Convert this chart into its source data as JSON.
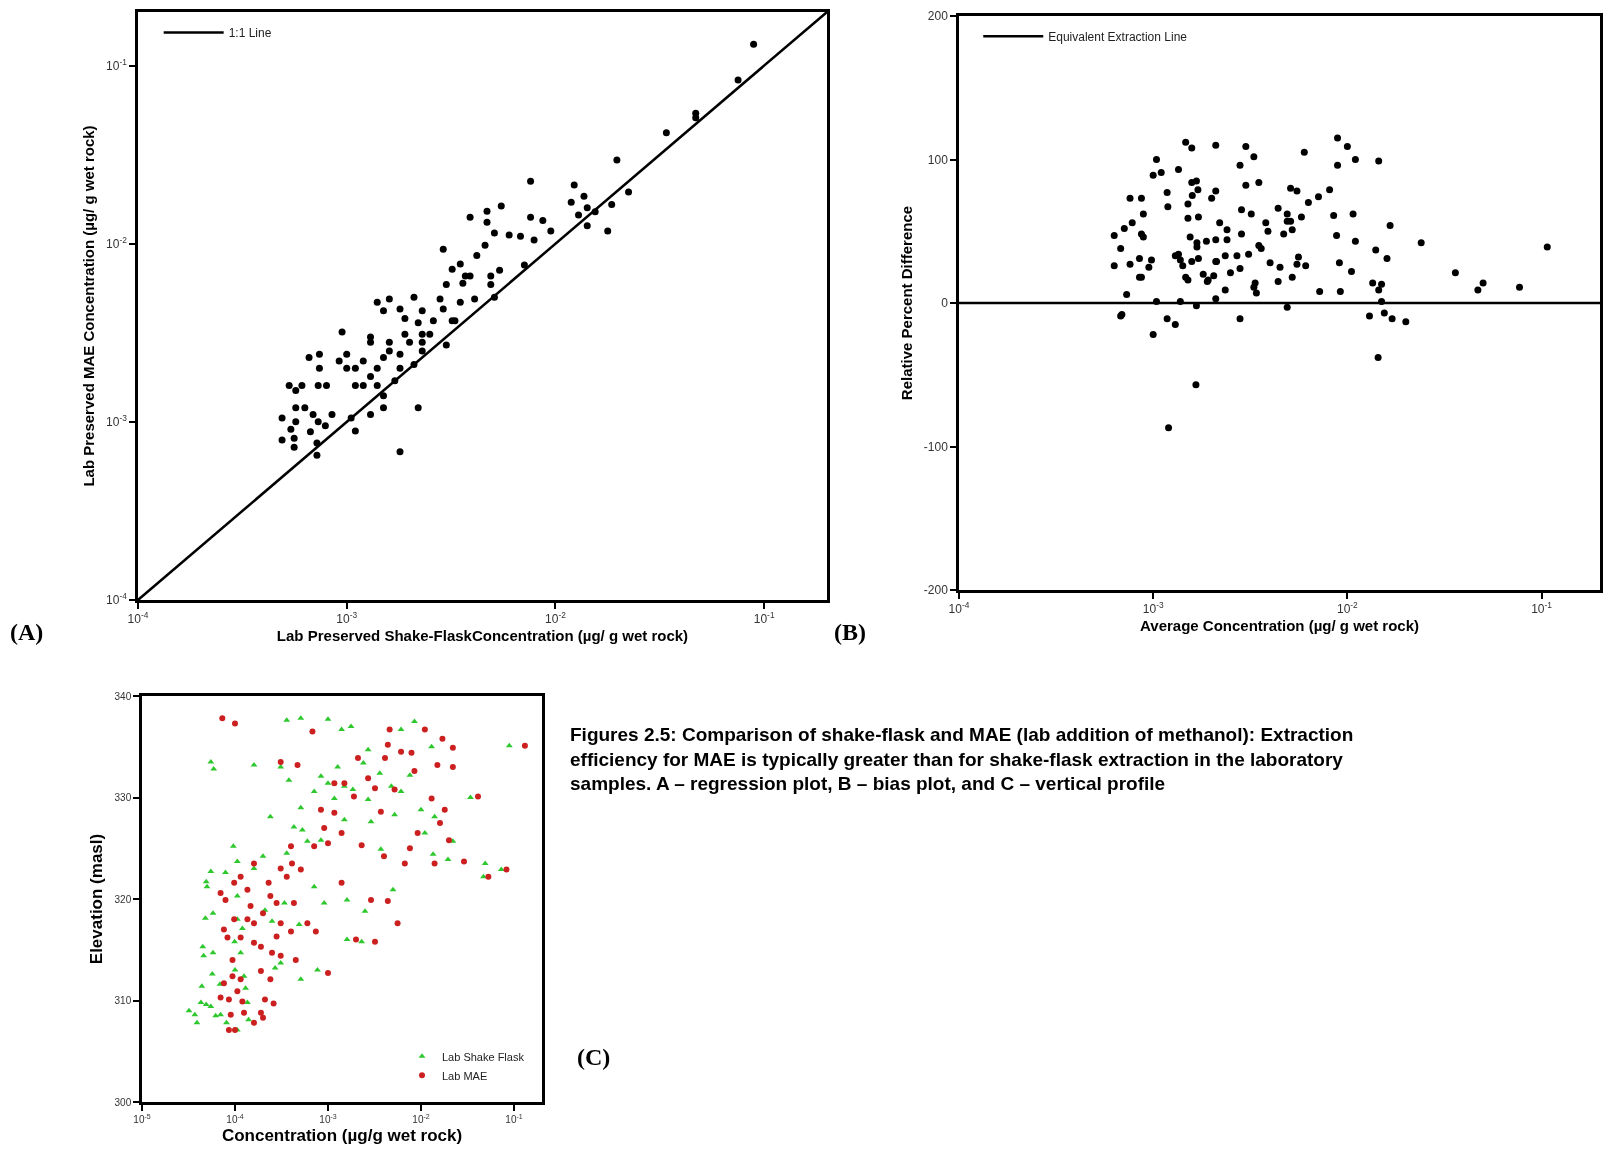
{
  "chart_data": [
    {
      "type": "scatter",
      "xlabel": "Lab Preserved Shake-FlaskConcentration (µg/ g wet rock)",
      "ylabel": "Lab Preserved MAE Concentration (µg/ g wet rock)",
      "annotations": [
        "(A)"
      ],
      "log": "xy",
      "legend": "top left",
      "xlim": [
        0.0001,
        0.2
      ],
      "ylim": [
        0.0001,
        0.2
      ],
      "xticks": [
        {
          "value": 0.0001,
          "label": "10$^{-4}$"
        },
        {
          "value": 0.001,
          "label": "10$^{-3}$"
        },
        {
          "value": 0.01,
          "label": "10$^{-2}$"
        },
        {
          "value": 0.1,
          "label": "10$^{-1}$"
        }
      ],
      "yticks": [
        {
          "value": 0.0001,
          "label": "10$^{-4}$"
        },
        {
          "value": 0.001,
          "label": "10$^{-3}$"
        },
        {
          "value": 0.01,
          "label": "10$^{-2}$"
        },
        {
          "value": 0.1,
          "label": "10$^{-1}$"
        }
      ],
      "series": [
        {
          "type": "line",
          "name": "1:1 Line",
          "color": "#000000",
          "marker": "none",
          "x": [
            0.0001,
            0.2
          ],
          "values": [
            0.0001,
            0.2
          ]
        },
        {
          "color": "#000000",
          "marker": "circle",
          "x": [
            0.089,
            0.075,
            0.047,
            0.047,
            0.034,
            0.0197,
            0.0224,
            0.0186,
            0.0178,
            0.0123,
            0.0119,
            0.0137,
            0.0142,
            0.0142,
            0.0155,
            0.0129,
            0.0076,
            0.0076,
            0.0087,
            0.0095,
            0.0055,
            0.0047,
            0.0047,
            0.006,
            0.0068,
            0.0079,
            0.0051,
            0.0039,
            0.0046,
            0.0042,
            0.0071,
            0.0029,
            0.0032,
            0.0035,
            0.0037,
            0.0039,
            0.0054,
            0.0049,
            0.0049,
            0.0036,
            0.003,
            0.0035,
            0.0041,
            0.0051,
            0.0028,
            0.0029,
            0.0026,
            0.0032,
            0.0033,
            0.003,
            0.0021,
            0.0023,
            0.0022,
            0.0023,
            0.0025,
            0.0016,
            0.0018,
            0.0015,
            0.0014,
            0.0019,
            0.0019,
            0.002,
            0.0023,
            0.0023,
            0.0021,
            0.0018,
            0.0016,
            0.0018,
            0.0016,
            0.0015,
            0.0014,
            0.0013,
            0.0013,
            0.0012,
            0.0013,
            0.0012,
            0.0014,
            0.0011,
            0.001,
            0.00095,
            0.00092,
            0.001,
            0.0011,
            0.0015,
            0.0015,
            0.0017,
            0.0013,
            0.00105,
            0.0011,
            0.0022,
            0.0018,
            0.00066,
            0.00074,
            0.00074,
            0.00061,
            0.00073,
            0.0008,
            0.00053,
            0.00057,
            0.00057,
            0.00063,
            0.00069,
            0.00085,
            0.00049,
            0.00057,
            0.00054,
            0.00067,
            0.00079,
            0.00073,
            0.00049,
            0.00056,
            0.00056,
            0.00072,
            0.00072
          ],
          "values": [
            0.132,
            0.083,
            0.054,
            0.051,
            0.042,
            0.0295,
            0.0195,
            0.0166,
            0.0118,
            0.0214,
            0.0171,
            0.0185,
            0.0159,
            0.0126,
            0.0151,
            0.0145,
            0.0224,
            0.0141,
            0.0135,
            0.0118,
            0.0163,
            0.0152,
            0.0132,
            0.0112,
            0.011,
            0.0105,
            0.0115,
            0.0141,
            0.0098,
            0.0086,
            0.0076,
            0.0093,
            0.0072,
            0.0077,
            0.0066,
            0.0066,
            0.0071,
            0.0066,
            0.0059,
            0.006,
            0.0059,
            0.0047,
            0.0049,
            0.005,
            0.0049,
            0.0043,
            0.0037,
            0.0037,
            0.0037,
            0.0027,
            0.005,
            0.0042,
            0.0036,
            0.0031,
            0.0031,
            0.0049,
            0.0043,
            0.0042,
            0.0047,
            0.0038,
            0.0031,
            0.0028,
            0.0028,
            0.0025,
            0.0021,
            0.0024,
            0.0025,
            0.002,
            0.0028,
            0.0023,
            0.002,
            0.0028,
            0.003,
            0.0022,
            0.0018,
            0.0016,
            0.0016,
            0.002,
            0.002,
            0.0032,
            0.0022,
            0.0024,
            0.0016,
            0.0014,
            0.0012,
            0.0017,
            0.0011,
            0.00105,
            0.00089,
            0.0012,
            0.00068,
            0.0023,
            0.0024,
            0.002,
            0.0016,
            0.0016,
            0.0016,
            0.0016,
            0.0015,
            0.0012,
            0.0012,
            0.0011,
            0.0011,
            0.00105,
            0.001,
            0.00091,
            0.00088,
            0.00095,
            0.001,
            0.00079,
            0.00081,
            0.00072,
            0.00076,
            0.00065
          ]
        }
      ]
    },
    {
      "type": "scatter",
      "xlabel": "Average Concentration (µg/ g wet rock)",
      "ylabel": "Relative Percent Difference",
      "annotations": [
        "(B)"
      ],
      "log": "x",
      "legend": "top left",
      "xlim": [
        0.0001,
        0.2
      ],
      "ylim": [
        -200,
        200
      ],
      "xticks": [
        {
          "value": 0.0001,
          "label": "10$^{-4}$"
        },
        {
          "value": 0.001,
          "label": "10$^{-3}$"
        },
        {
          "value": 0.01,
          "label": "10$^{-2}$"
        },
        {
          "value": 0.1,
          "label": "10$^{-1}$"
        }
      ],
      "yticks": [
        -200,
        -100,
        0,
        100,
        200
      ],
      "series": [
        {
          "type": "line",
          "name": "Equivalent Extraction Line",
          "color": "#000000",
          "marker": "none",
          "x": [
            0.0001,
            0.2
          ],
          "values": [
            0,
            0
          ]
        },
        {
          "color": "#000000",
          "marker": "circle",
          "x": [
            0.00063,
            0.00063,
            0.00068,
            0.00071,
            0.00076,
            0.00078,
            0.00076,
            0.00073,
            0.00068,
            0.00069,
            0.00085,
            0.00085,
            0.00087,
            0.00089,
            0.00087,
            0.00089,
            0.00087,
            0.00095,
            0.00098,
            0.001,
            0.00104,
            0.001,
            0.00104,
            0.0011,
            0.00118,
            0.00119,
            0.00118,
            0.0013,
            0.0013,
            0.00135,
            0.00135,
            0.00138,
            0.00142,
            0.00138,
            0.00147,
            0.00151,
            0.00151,
            0.00147,
            0.00151,
            0.00155,
            0.00158,
            0.00158,
            0.00158,
            0.00159,
            0.00167,
            0.0017,
            0.00168,
            0.00168,
            0.00167,
            0.00166,
            0.0012,
            0.00171,
            0.00171,
            0.00181,
            0.0019,
            0.00188,
            0.00192,
            0.002,
            0.0021,
            0.0021,
            0.0021,
            0.0021,
            0.00212,
            0.00205,
            0.0021,
            0.0022,
            0.00235,
            0.00235,
            0.0024,
            0.0024,
            0.0025,
            0.0027,
            0.0028,
            0.00285,
            0.0028,
            0.00285,
            0.0028,
            0.003,
            0.003,
            0.0031,
            0.0032,
            0.0033,
            0.0033,
            0.00335,
            0.0034,
            0.0035,
            0.0035,
            0.0036,
            0.0038,
            0.0039,
            0.004,
            0.0044,
            0.0045,
            0.0044,
            0.0047,
            0.0049,
            0.0049,
            0.0051,
            0.0051,
            0.0052,
            0.0052,
            0.0049,
            0.0055,
            0.0056,
            0.0055,
            0.0058,
            0.006,
            0.0061,
            0.0063,
            0.0071,
            0.0072,
            0.0081,
            0.0085,
            0.0088,
            0.0089,
            0.0089,
            0.0091,
            0.0092,
            0.01,
            0.0105,
            0.0107,
            0.011,
            0.011,
            0.013,
            0.0135,
            0.014,
            0.0145,
            0.0145,
            0.0144,
            0.015,
            0.015,
            0.0155,
            0.016,
            0.0166,
            0.017,
            0.02,
            0.024,
            0.036,
            0.047,
            0.05,
            0.077,
            0.107
          ],
          "values": [
            47,
            26,
            38,
            52,
            73,
            56,
            27,
            6,
            -9,
            -8,
            31,
            18,
            73,
            62,
            48,
            46,
            18,
            25,
            30,
            89,
            100,
            -22,
            1,
            91,
            77,
            67,
            -11,
            -15,
            33,
            93,
            34,
            30,
            26,
            1,
            112,
            69,
            59,
            18,
            16,
            46,
            29,
            108,
            84,
            75,
            85,
            79,
            39,
            42,
            -2,
            -57,
            -87,
            60,
            31,
            20,
            15,
            43,
            16,
            73,
            110,
            78,
            44,
            29,
            29,
            19,
            3,
            56,
            9,
            33,
            51,
            44,
            21,
            33,
            96,
            65,
            24,
            48,
            -11,
            109,
            82,
            34,
            62,
            102,
            11,
            14,
            7,
            84,
            40,
            38,
            56,
            50,
            28,
            66,
            25,
            15,
            48,
            62,
            57,
            80,
            57,
            51,
            18,
            -3,
            27,
            32,
            78,
            60,
            105,
            26,
            70,
            74,
            8,
            79,
            61,
            47,
            115,
            96,
            28,
            8,
            109,
            22,
            62,
            100,
            43,
            -9,
            14,
            37,
            99,
            9,
            -38,
            13,
            1,
            -7,
            31,
            54,
            -11,
            -13,
            42,
            21,
            9,
            14,
            11,
            39
          ]
        }
      ]
    },
    {
      "type": "scatter",
      "xlabel": "Concentration (µg/g wet rock)",
      "ylabel": "Elevation (masl)",
      "annotations": [
        "(C)",
        "Figures 2.5: Comparison of shake-flask and MAE (lab addition of methanol): Extraction efficiency for MAE is typically greater than for shake-flask extraction in the laboratory samples. A – regression plot, B – bias plot, and C – vertical profile"
      ],
      "log": "x",
      "legend": "bottom right",
      "xlim": [
        1e-05,
        0.2
      ],
      "ylim": [
        300,
        340
      ],
      "xticks": [
        {
          "value": 1e-05,
          "label": "10$^{-5}$"
        },
        {
          "value": 0.0001,
          "label": "10$^{-4}$"
        },
        {
          "value": 0.001,
          "label": "10$^{-3}$"
        },
        {
          "value": 0.01,
          "label": "10$^{-2}$"
        },
        {
          "value": 0.1,
          "label": "10$^{-1}$"
        }
      ],
      "yticks": [
        300,
        310,
        320,
        330,
        340
      ],
      "series": [
        {
          "name": "Lab Shake Flask",
          "color": "#2ec82e",
          "marker": "triangle",
          "x": [
            3.2e-05,
            3.7e-05,
            3.9e-05,
            4.3e-05,
            4.9e-05,
            5.5e-05,
            6.2e-05,
            7e-05,
            8.1e-05,
            0.000106,
            0.000136,
            0.00014,
            6.9e-05,
            5.7e-05,
            4.4e-05,
            4.6e-05,
            4.5e-05,
            5.8e-05,
            4.8e-05,
            5.8e-05,
            5e-05,
            4.9e-05,
            5.5e-05,
            7.9e-05,
            9.6e-05,
            0.000106,
            0.000106,
            0.000106,
            0.00012,
            9.9e-05,
            0.000115,
            0.0001,
            0.000125,
            0.00013,
            0.00016,
            0.0002,
            0.00021,
            0.00025,
            0.00027,
            0.00031,
            0.00034,
            0.00036,
            0.00049,
            0.00051,
            0.00077,
            0.00071,
            0.0006,
            0.00084,
            0.00053,
            0.00051,
            0.00071,
            0.00084,
            0.001,
            0.00127,
            0.00117,
            0.0015,
            0.00185,
            0.0024,
            0.0027,
            0.0027,
            0.0036,
            0.0048,
            0.0052,
            0.0061,
            0.0076,
            0.01,
            0.014,
            0.011,
            0.0135,
            0.0195,
            0.022,
            0.034,
            0.049,
            0.047,
            0.073,
            0.089,
            0.0085,
            0.0061,
            0.00177,
            0.0014,
            0.001,
            0.00051,
            0.00036,
            0.00031,
            0.00016,
            5.5e-05,
            5.9e-05,
            0.00091,
            0.0016,
            0.0025,
            0.0016,
            0.0023,
            0.005,
            0.0037,
            0.013,
            0.0029,
            0.0015,
            0.00043,
            0.00024,
            0.00038
          ],
          "values": [
            309.0,
            308.6,
            307.8,
            309.8,
            309.6,
            309.4,
            308.5,
            308.6,
            307.8,
            307.1,
            309.8,
            308.1,
            311.6,
            312.6,
            311.4,
            314.4,
            315.3,
            314.7,
            318.1,
            318.6,
            321.2,
            321.7,
            322.7,
            322.6,
            325.2,
            323.7,
            320.3,
            318.0,
            317.1,
            315.8,
            314.7,
            313.0,
            312.4,
            311.2,
            323.0,
            324.2,
            318.9,
            317.8,
            313.2,
            313.7,
            319.6,
            324.5,
            317.5,
            312.1,
            313.0,
            321.2,
            325.7,
            325.8,
            326.8,
            329.0,
            330.6,
            332.1,
            331.4,
            333.0,
            329.9,
            331.1,
            330.8,
            333.4,
            334.7,
            329.8,
            332.4,
            331.1,
            328.3,
            330.6,
            332.2,
            328.8,
            328.1,
            326.5,
            324.4,
            323.9,
            325.7,
            330.0,
            323.5,
            322.2,
            322.9,
            335.1,
            337.5,
            336.7,
            337.0,
            336.7,
            337.7,
            337.8,
            337.6,
            333.0,
            333.2,
            333.5,
            332.8,
            319.6,
            319.9,
            318.8,
            316.0,
            315.8,
            320.9,
            324.9,
            335.0,
            327.6,
            327.8,
            327.1,
            328.1,
            331.7
          ]
        },
        {
          "name": "Lab MAE",
          "color": "#cc2020",
          "marker": "circle",
          "x": [
            7.3e-05,
            0.0001,
            0.00068,
            8.6e-05,
            9e-05,
            8.6e-05,
            0.0001,
            0.000106,
            9.4e-05,
            0.000115,
            0.00012,
            0.000125,
            7.6e-05,
            7e-05,
            9.4e-05,
            8.3e-05,
            7.6e-05,
            9.8e-05,
            7.9e-05,
            7e-05,
            9.8e-05,
            0.000115,
            0.000136,
            0.000147,
            0.00016,
            0.00016,
            0.00019,
            0.000136,
            0.0002,
            0.00024,
            0.00028,
            0.00023,
            0.00016,
            0.00031,
            0.00041,
            0.0004,
            0.00051,
            0.00043,
            0.00031,
            0.00028,
            0.00025,
            0.00031,
            0.00019,
            0.00024,
            0.00021,
            0.00026,
            0.00019,
            0.0002,
            0.00016,
            0.0004,
            0.00045,
            0.0006,
            0.00074,
            0.001,
            0.00071,
            0.001,
            0.0014,
            0.00084,
            0.00117,
            0.00117,
            0.0015,
            0.0019,
            0.0021,
            0.0027,
            0.0032,
            0.0041,
            0.0044,
            0.0046,
            0.0061,
            0.0079,
            0.0085,
            0.011,
            0.015,
            0.017,
            0.022,
            0.022,
            0.013,
            0.018,
            0.016,
            0.0092,
            0.0076,
            0.0067,
            0.02,
            0.014,
            0.029,
            0.053,
            0.083,
            0.131,
            0.041,
            0.0056,
            0.0044,
            0.0032,
            0.002,
            0.0014,
            0.0029,
            0.004,
            0.0023,
            0.0037,
            0.0052,
            0.00091,
            0.00031,
            0.00047,
            0.000115,
            0.00036
          ],
          "values": [
            337.8,
            337.3,
            336.5,
            310.1,
            308.6,
            307.1,
            307.1,
            310.9,
            312.4,
            312.1,
            309.9,
            308.8,
            311.7,
            310.3,
            314.0,
            316.2,
            317.0,
            318.0,
            319.9,
            320.6,
            321.6,
            322.2,
            320.9,
            319.3,
            317.6,
            315.7,
            315.3,
            318.0,
            318.6,
            320.3,
            319.6,
            321.6,
            323.5,
            323.0,
            323.5,
            325.2,
            322.9,
            319.6,
            317.6,
            316.3,
            314.7,
            314.4,
            312.9,
            312.1,
            310.1,
            309.7,
            308.8,
            308.3,
            307.8,
            316.8,
            314.0,
            317.6,
            316.8,
            312.7,
            325.2,
            325.5,
            326.5,
            328.8,
            328.5,
            331.4,
            331.4,
            330.1,
            333.9,
            331.9,
            330.9,
            333.9,
            335.2,
            336.7,
            334.5,
            334.4,
            332.6,
            336.7,
            333.2,
            335.8,
            334.9,
            333.0,
            329.9,
            328.8,
            327.5,
            326.5,
            325.0,
            323.5,
            325.8,
            323.5,
            323.7,
            322.2,
            322.9,
            335.1,
            330.1,
            317.6,
            319.8,
            315.8,
            316.0,
            321.6,
            319.9,
            324.2,
            325.3,
            328.6,
            330.8,
            327.0,
            333.5,
            333.2,
            316.2,
            322.2
          ]
        }
      ]
    }
  ]
}
